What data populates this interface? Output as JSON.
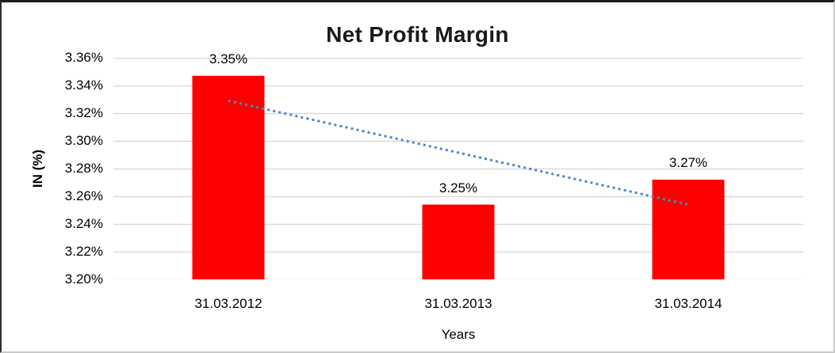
{
  "title": "Net Profit Margin",
  "colors": {
    "bar": "#ff0000",
    "trendline": "#4a86c8",
    "gridline": "#d9d9d9",
    "title_text": "#1a1a1a",
    "axis_text": "#000000",
    "background": "#ffffff"
  },
  "chart_data": {
    "type": "bar",
    "title": "Net Profit Margin",
    "xlabel": "Years",
    "ylabel": "IN (%)",
    "categories": [
      "31.03.2012",
      "31.03.2013",
      "31.03.2014"
    ],
    "values": [
      3.347,
      3.254,
      3.272
    ],
    "data_labels": [
      "3.35%",
      "3.25%",
      "3.27%"
    ],
    "ylim": [
      3.2,
      3.36
    ],
    "y_tick_step": 0.02,
    "y_tick_labels": [
      "3.20%",
      "3.22%",
      "3.24%",
      "3.26%",
      "3.28%",
      "3.30%",
      "3.32%",
      "3.34%",
      "3.36%"
    ],
    "grid": true,
    "legend": false,
    "trendline": {
      "type": "linear",
      "style": "dotted",
      "start_value": 3.329,
      "end_value": 3.254
    }
  }
}
